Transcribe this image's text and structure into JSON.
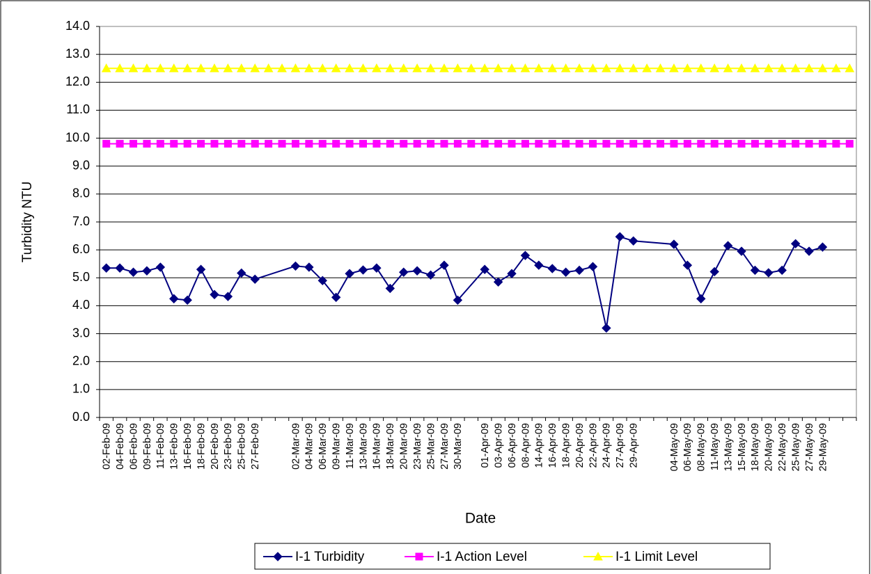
{
  "chart_data": {
    "type": "line",
    "x_label": "Date",
    "y_label": "Turbidity NTU",
    "categories": [
      "02-Feb-09",
      "04-Feb-09",
      "06-Feb-09",
      "09-Feb-09",
      "11-Feb-09",
      "13-Feb-09",
      "16-Feb-09",
      "18-Feb-09",
      "20-Feb-09",
      "23-Feb-09",
      "25-Feb-09",
      "27-Feb-09",
      null,
      null,
      "02-Mar-09",
      "04-Mar-09",
      "06-Mar-09",
      "09-Mar-09",
      "11-Mar-09",
      "13-Mar-09",
      "16-Mar-09",
      "18-Mar-09",
      "20-Mar-09",
      "23-Mar-09",
      "25-Mar-09",
      "27-Mar-09",
      "30-Mar-09",
      null,
      "01-Apr-09",
      "03-Apr-09",
      "06-Apr-09",
      "08-Apr-09",
      "14-Apr-09",
      "16-Apr-09",
      "18-Apr-09",
      "20-Apr-09",
      "22-Apr-09",
      "24-Apr-09",
      "27-Apr-09",
      "29-Apr-09",
      null,
      null,
      "04-May-09",
      "06-May-09",
      "08-May-09",
      "11-May-09",
      "13-May-09",
      "15-May-09",
      "18-May-09",
      "20-May-09",
      "22-May-09",
      "25-May-09",
      "27-May-09",
      "29-May-09",
      null,
      null
    ],
    "series": [
      {
        "name": "I-1 Turbidity",
        "color": "#000080",
        "marker": "diamond",
        "values": [
          5.35,
          5.35,
          5.2,
          5.25,
          5.38,
          4.25,
          4.2,
          5.3,
          4.4,
          4.33,
          5.17,
          4.95,
          null,
          null,
          5.42,
          5.38,
          4.9,
          4.3,
          5.15,
          5.28,
          5.35,
          4.62,
          5.2,
          5.25,
          5.1,
          5.45,
          4.2,
          null,
          5.3,
          4.85,
          5.15,
          5.8,
          5.45,
          5.33,
          5.2,
          5.27,
          5.4,
          3.2,
          6.47,
          6.32,
          null,
          null,
          6.2,
          5.45,
          4.25,
          5.22,
          6.15,
          5.95,
          5.27,
          5.18,
          5.27,
          6.22,
          5.95,
          6.1,
          null,
          null
        ]
      },
      {
        "name": "I-1 Action Level",
        "color": "#ff00ff",
        "marker": "square",
        "values": [
          9.8,
          9.8,
          9.8,
          9.8,
          9.8,
          9.8,
          9.8,
          9.8,
          9.8,
          9.8,
          9.8,
          9.8,
          9.8,
          9.8,
          9.8,
          9.8,
          9.8,
          9.8,
          9.8,
          9.8,
          9.8,
          9.8,
          9.8,
          9.8,
          9.8,
          9.8,
          9.8,
          9.8,
          9.8,
          9.8,
          9.8,
          9.8,
          9.8,
          9.8,
          9.8,
          9.8,
          9.8,
          9.8,
          9.8,
          9.8,
          9.8,
          9.8,
          9.8,
          9.8,
          9.8,
          9.8,
          9.8,
          9.8,
          9.8,
          9.8,
          9.8,
          9.8,
          9.8,
          9.8,
          9.8,
          9.8
        ]
      },
      {
        "name": "I-1 Limit Level",
        "color": "#ffff00",
        "marker": "triangle",
        "values": [
          12.5,
          12.5,
          12.5,
          12.5,
          12.5,
          12.5,
          12.5,
          12.5,
          12.5,
          12.5,
          12.5,
          12.5,
          12.5,
          12.5,
          12.5,
          12.5,
          12.5,
          12.5,
          12.5,
          12.5,
          12.5,
          12.5,
          12.5,
          12.5,
          12.5,
          12.5,
          12.5,
          12.5,
          12.5,
          12.5,
          12.5,
          12.5,
          12.5,
          12.5,
          12.5,
          12.5,
          12.5,
          12.5,
          12.5,
          12.5,
          12.5,
          12.5,
          12.5,
          12.5,
          12.5,
          12.5,
          12.5,
          12.5,
          12.5,
          12.5,
          12.5,
          12.5,
          12.5,
          12.5,
          12.5,
          12.5
        ]
      }
    ],
    "connect_gaps": true,
    "ylim": [
      0,
      14
    ],
    "yticks": [
      {
        "value": 0,
        "label": "0.0"
      },
      {
        "value": 1,
        "label": "1.0"
      },
      {
        "value": 2,
        "label": "2.0"
      },
      {
        "value": 3,
        "label": "3.0"
      },
      {
        "value": 4,
        "label": "4.0"
      },
      {
        "value": 5,
        "label": "5.0"
      },
      {
        "value": 6,
        "label": "6.0"
      },
      {
        "value": 7,
        "label": "7.0"
      },
      {
        "value": 8,
        "label": "8.0"
      },
      {
        "value": 9,
        "label": "9.0"
      },
      {
        "value": 10,
        "label": "10.0"
      },
      {
        "value": 11,
        "label": "11.0"
      },
      {
        "value": 12,
        "label": "12.0"
      },
      {
        "value": 13,
        "label": "13.0"
      },
      {
        "value": 14,
        "label": "14.0"
      }
    ],
    "grid": true,
    "legend": "bottom"
  }
}
